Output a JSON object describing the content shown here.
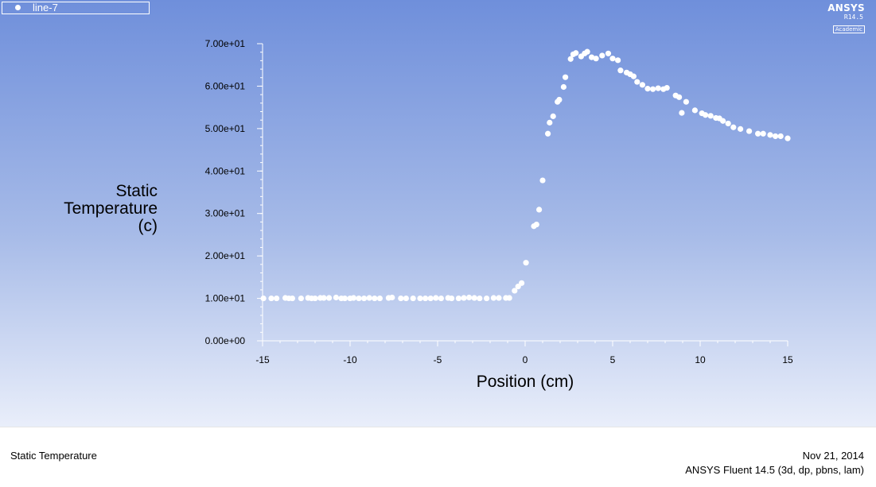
{
  "legend": {
    "label": "line-7"
  },
  "logo": {
    "main": "ANSYS",
    "version": "R14.5",
    "edition": "Academic"
  },
  "footer": {
    "title": "Static Temperature",
    "date": "Nov 21, 2014",
    "app": "ANSYS Fluent 14.5 (3d, dp, pbns, lam)"
  },
  "colors": {
    "background_top": "#6f8fdb",
    "background_bottom": "#e9eefa",
    "marker": "#ffffff",
    "axis": "#ffffff"
  },
  "chart_data": {
    "type": "scatter",
    "xlabel": "Position (cm)",
    "ylabel_lines": [
      "Static",
      "Temperature",
      "(c)"
    ],
    "xlim": [
      -15,
      15
    ],
    "ylim": [
      0,
      70
    ],
    "xticks": [
      -15,
      -10,
      -5,
      0,
      5,
      10,
      15
    ],
    "xtick_labels": [
      "-15",
      "-10",
      "-5",
      "0",
      "5",
      "10",
      "15"
    ],
    "yticks": [
      0,
      10,
      20,
      30,
      40,
      50,
      60,
      70
    ],
    "ytick_labels": [
      "0.00e+00",
      "1.00e+01",
      "2.00e+01",
      "3.00e+01",
      "4.00e+01",
      "5.00e+01",
      "6.00e+01",
      "7.00e+01"
    ],
    "legend_position": "top-left",
    "grid": false,
    "series": [
      {
        "name": "line-7",
        "x": [
          -14.95,
          -14.5,
          -14.2,
          -13.7,
          -13.5,
          -13.3,
          -12.8,
          -12.4,
          -12.2,
          -12.0,
          -11.7,
          -11.5,
          -11.2,
          -10.8,
          -10.5,
          -10.3,
          -10.0,
          -9.8,
          -9.5,
          -9.2,
          -8.9,
          -8.6,
          -8.3,
          -7.8,
          -7.6,
          -7.1,
          -6.8,
          -6.4,
          -6.0,
          -5.7,
          -5.4,
          -5.1,
          -4.8,
          -4.4,
          -4.2,
          -3.8,
          -3.5,
          -3.2,
          -2.9,
          -2.6,
          -2.2,
          -1.8,
          -1.5,
          -1.1,
          -0.9,
          -0.6,
          -0.4,
          -0.2,
          0.05,
          0.5,
          0.65,
          0.8,
          1.0,
          1.3,
          1.4,
          1.6,
          1.85,
          1.95,
          2.2,
          2.3,
          2.6,
          2.75,
          2.9,
          3.2,
          3.4,
          3.55,
          3.8,
          4.05,
          4.4,
          4.75,
          5.0,
          5.3,
          5.45,
          5.8,
          6.0,
          6.2,
          6.4,
          6.7,
          7.0,
          7.3,
          7.6,
          7.9,
          8.1,
          8.6,
          8.8,
          8.95,
          9.2,
          9.7,
          10.1,
          10.3,
          10.6,
          10.9,
          11.1,
          11.3,
          11.6,
          11.9,
          12.3,
          12.8,
          13.3,
          13.6,
          14.0,
          14.3,
          14.6,
          15.0
        ],
        "y": [
          10.0,
          10.0,
          10.0,
          10.1,
          10.0,
          10.0,
          10.0,
          10.1,
          10.0,
          10.0,
          10.1,
          10.1,
          10.1,
          10.2,
          10.0,
          10.0,
          10.0,
          10.1,
          10.0,
          10.0,
          10.1,
          10.0,
          10.0,
          10.1,
          10.2,
          10.0,
          10.0,
          10.0,
          10.0,
          10.0,
          10.0,
          10.1,
          10.0,
          10.1,
          10.0,
          10.0,
          10.1,
          10.2,
          10.1,
          10.0,
          10.0,
          10.1,
          10.1,
          10.1,
          10.1,
          11.8,
          12.8,
          13.6,
          18.4,
          27.0,
          27.4,
          30.9,
          37.8,
          48.8,
          51.4,
          52.9,
          56.3,
          56.8,
          59.8,
          62.1,
          66.4,
          67.5,
          67.8,
          67.0,
          67.7,
          68.1,
          66.8,
          66.5,
          67.2,
          67.7,
          66.5,
          66.1,
          63.7,
          63.2,
          62.8,
          62.3,
          61.0,
          60.3,
          59.4,
          59.3,
          59.5,
          59.3,
          59.6,
          57.8,
          57.4,
          53.7,
          56.3,
          54.3,
          53.6,
          53.2,
          53.0,
          52.5,
          52.4,
          51.8,
          51.2,
          50.3,
          49.9,
          49.4,
          48.8,
          48.8,
          48.5,
          48.2,
          48.2,
          47.7
        ]
      }
    ]
  }
}
